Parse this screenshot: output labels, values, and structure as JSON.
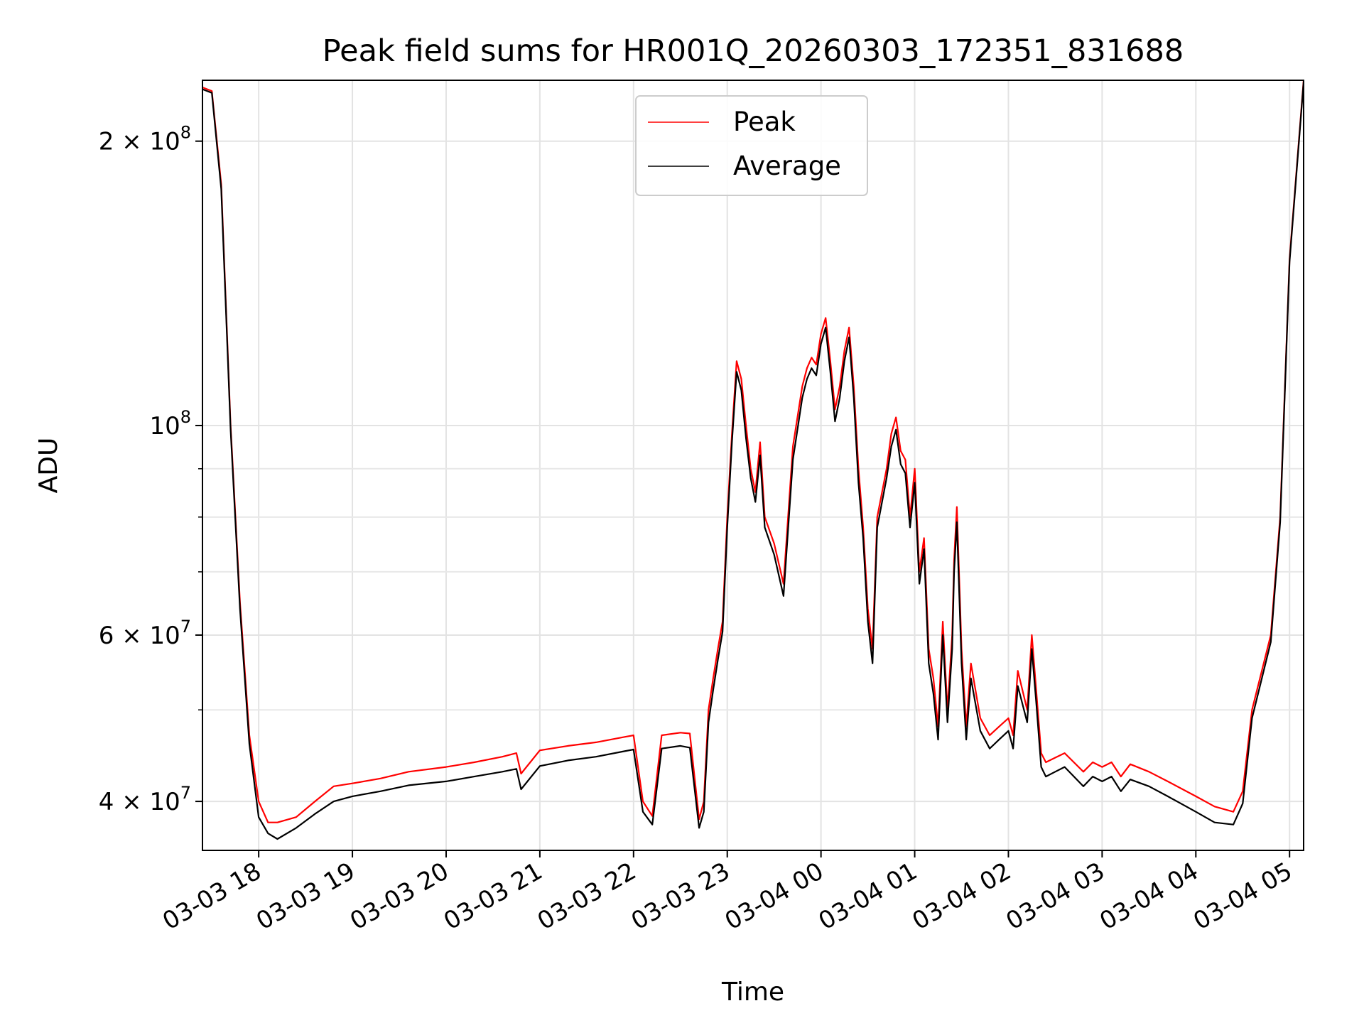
{
  "chart_data": {
    "type": "line",
    "title": "Peak field sums for HR001Q_20260303_172351_831688",
    "xlabel": "Time",
    "ylabel": "ADU",
    "yscale": "log",
    "ylim": [
      35500000,
      232000000
    ],
    "xlim_hours": [
      17.4,
      29.15
    ],
    "grid": true,
    "legend_location": "upper center",
    "x_ticks": [
      {
        "hours": 18,
        "label": "03-03 18"
      },
      {
        "hours": 19,
        "label": "03-03 19"
      },
      {
        "hours": 20,
        "label": "03-03 20"
      },
      {
        "hours": 21,
        "label": "03-03 21"
      },
      {
        "hours": 22,
        "label": "03-03 22"
      },
      {
        "hours": 23,
        "label": "03-03 23"
      },
      {
        "hours": 24,
        "label": "03-04 00"
      },
      {
        "hours": 25,
        "label": "03-04 01"
      },
      {
        "hours": 26,
        "label": "03-04 02"
      },
      {
        "hours": 27,
        "label": "03-04 03"
      },
      {
        "hours": 28,
        "label": "03-04 04"
      },
      {
        "hours": 29,
        "label": "03-04 05"
      }
    ],
    "y_major_ticks": [
      {
        "value": 40000000,
        "base": "4 × 10",
        "exp": "7"
      },
      {
        "value": 60000000,
        "base": "6 × 10",
        "exp": "7"
      },
      {
        "value": 100000000,
        "base": "10",
        "exp": "8"
      },
      {
        "value": 200000000,
        "base": "2 × 10",
        "exp": "8"
      }
    ],
    "y_minor_ticks": [
      50000000,
      70000000,
      80000000,
      90000000
    ],
    "x_hours": [
      17.4,
      17.5,
      17.6,
      17.7,
      17.8,
      17.9,
      18.0,
      18.1,
      18.2,
      18.4,
      18.6,
      18.8,
      19.0,
      19.3,
      19.6,
      20.0,
      20.3,
      20.6,
      20.75,
      20.8,
      21.0,
      21.3,
      21.6,
      21.9,
      22.0,
      22.1,
      22.2,
      22.3,
      22.5,
      22.6,
      22.7,
      22.75,
      22.8,
      22.85,
      22.9,
      22.95,
      23.0,
      23.05,
      23.1,
      23.15,
      23.2,
      23.25,
      23.3,
      23.35,
      23.4,
      23.5,
      23.6,
      23.7,
      23.8,
      23.85,
      23.9,
      23.95,
      24.0,
      24.05,
      24.1,
      24.15,
      24.2,
      24.25,
      24.3,
      24.35,
      24.4,
      24.45,
      24.5,
      24.55,
      24.6,
      24.7,
      24.75,
      24.8,
      24.85,
      24.9,
      24.95,
      25.0,
      25.05,
      25.1,
      25.15,
      25.2,
      25.25,
      25.3,
      25.35,
      25.4,
      25.42,
      25.45,
      25.5,
      25.55,
      25.6,
      25.7,
      25.8,
      25.9,
      26.0,
      26.05,
      26.1,
      26.2,
      26.25,
      26.3,
      26.35,
      26.4,
      26.5,
      26.6,
      26.8,
      26.9,
      27.0,
      27.1,
      27.2,
      27.3,
      27.5,
      27.7,
      28.0,
      28.2,
      28.4,
      28.5,
      28.6,
      28.8,
      28.9,
      29.0,
      29.15
    ],
    "series": [
      {
        "name": "Peak",
        "color": "#ff0000",
        "values": [
          228000000,
          226000000,
          180000000,
          100000000,
          65000000,
          47000000,
          40000000,
          38000000,
          38000000,
          38500000,
          40000000,
          41500000,
          41800000,
          42300000,
          43000000,
          43500000,
          44000000,
          44600000,
          45000000,
          42800000,
          45300000,
          45800000,
          46200000,
          46800000,
          47000000,
          40000000,
          38600000,
          47000000,
          47300000,
          47200000,
          38300000,
          40000000,
          50000000,
          54000000,
          58000000,
          62000000,
          80000000,
          98000000,
          117000000,
          112000000,
          100000000,
          90000000,
          85000000,
          96000000,
          80000000,
          75000000,
          68000000,
          95000000,
          110000000,
          115000000,
          118000000,
          116000000,
          125000000,
          130000000,
          117000000,
          104000000,
          110000000,
          120000000,
          127000000,
          110000000,
          90000000,
          78000000,
          64000000,
          58000000,
          80000000,
          90000000,
          98000000,
          102000000,
          94000000,
          92000000,
          80000000,
          90000000,
          70000000,
          76000000,
          58000000,
          54000000,
          48000000,
          62000000,
          50000000,
          60000000,
          72000000,
          82000000,
          58000000,
          48000000,
          56000000,
          49000000,
          47000000,
          48000000,
          49000000,
          47000000,
          55000000,
          50000000,
          60000000,
          52000000,
          45000000,
          44000000,
          44500000,
          45000000,
          43000000,
          44000000,
          43500000,
          44000000,
          42500000,
          43800000,
          43000000,
          42000000,
          40500000,
          39500000,
          39000000,
          41000000,
          50000000,
          60000000,
          80000000,
          150000000,
          232000000
        ]
      },
      {
        "name": "Average",
        "color": "#000000",
        "values": [
          227000000,
          225000000,
          178000000,
          99000000,
          64000000,
          46000000,
          38500000,
          37000000,
          36500000,
          37500000,
          38800000,
          40000000,
          40500000,
          41000000,
          41600000,
          42000000,
          42500000,
          43000000,
          43300000,
          41200000,
          43600000,
          44200000,
          44600000,
          45200000,
          45400000,
          39000000,
          37800000,
          45500000,
          45800000,
          45600000,
          37500000,
          39000000,
          48500000,
          52500000,
          56500000,
          60500000,
          78000000,
          96000000,
          114000000,
          109000000,
          97000000,
          88000000,
          83000000,
          93000000,
          78000000,
          73000000,
          66000000,
          92000000,
          107000000,
          112000000,
          115000000,
          113000000,
          122000000,
          127000000,
          114000000,
          101000000,
          107000000,
          117000000,
          124000000,
          107000000,
          87000000,
          76000000,
          62000000,
          56000000,
          78000000,
          88000000,
          95000000,
          99000000,
          91000000,
          89000000,
          78000000,
          87000000,
          68000000,
          74000000,
          56000000,
          52000000,
          46500000,
          60000000,
          48500000,
          58000000,
          70000000,
          79000000,
          56000000,
          46500000,
          54000000,
          47500000,
          45500000,
          46500000,
          47500000,
          45500000,
          53000000,
          48500000,
          58000000,
          50500000,
          43500000,
          42500000,
          43000000,
          43500000,
          41500000,
          42500000,
          42000000,
          42500000,
          41000000,
          42200000,
          41500000,
          40500000,
          39000000,
          38000000,
          37800000,
          39800000,
          49000000,
          59000000,
          79000000,
          149000000,
          231000000
        ]
      }
    ]
  }
}
